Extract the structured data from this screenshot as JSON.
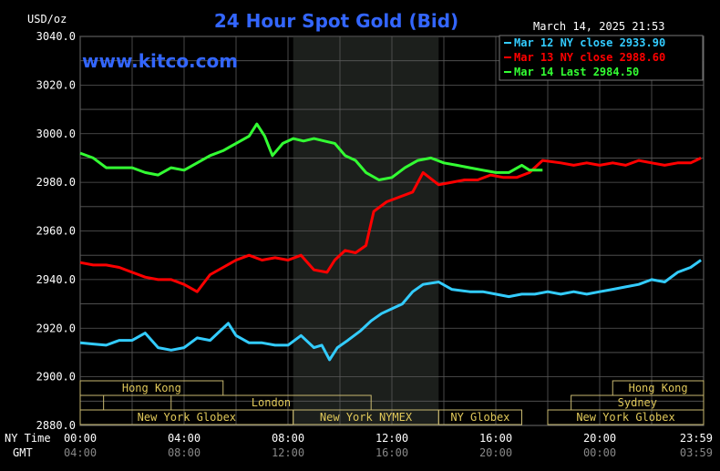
{
  "header": {
    "unit": "USD/oz",
    "title": "24 Hour Spot Gold (Bid)",
    "timestamp": "March 14, 2025 21:53",
    "watermark": "www.kitco.com"
  },
  "legend_items": [
    {
      "label": "Mar 12 NY close 2933.90",
      "color": "#33ccff"
    },
    {
      "label": "Mar 13 NY close 2988.60",
      "color": "#ff0000"
    },
    {
      "label": "Mar 14 Last 2984.50",
      "color": "#33ff33"
    }
  ],
  "axis_labels": {
    "ny_time": "NY Time",
    "gmt": "GMT"
  },
  "y_ticks": [
    "3040.0",
    "3020.0",
    "3000.0",
    "2980.0",
    "2960.0",
    "2940.0",
    "2920.0",
    "2900.0",
    "2880.0"
  ],
  "x_ticks_ny": [
    "00:00",
    "04:00",
    "08:00",
    "12:00",
    "16:00",
    "20:00",
    "23:59"
  ],
  "x_ticks_gmt": [
    "04:00",
    "08:00",
    "12:00",
    "16:00",
    "20:00",
    "00:00",
    "03:59"
  ],
  "sessions": {
    "row1": [
      {
        "label": "Hong Kong",
        "start": 0,
        "end": 5.5
      },
      {
        "label": "Hong Kong",
        "start": 20.5,
        "end": 24
      }
    ],
    "row2": [
      {
        "label": "",
        "start": 0,
        "end": 0.9
      },
      {
        "label": "London",
        "start": 3.5,
        "end": 11.2
      },
      {
        "label": "Sydney",
        "start": 18.9,
        "end": 24
      }
    ],
    "row3": [
      {
        "label": "New York Globex",
        "start": 0,
        "end": 8.2
      },
      {
        "label": "New York NYMEX",
        "start": 8.2,
        "end": 13.8
      },
      {
        "label": "NY Globex",
        "start": 13.8,
        "end": 17.0
      },
      {
        "label": "New York Globex",
        "start": 18.0,
        "end": 24
      }
    ]
  },
  "chart_data": {
    "type": "line",
    "title": "24 Hour Spot Gold (Bid)",
    "ylabel": "USD/oz",
    "xlabel": "NY Time",
    "xlim": [
      0,
      24
    ],
    "ylim": [
      2880,
      3040
    ],
    "shaded_region": [
      8.2,
      13.8
    ],
    "grid": true,
    "legend_position": "top-right",
    "series": [
      {
        "name": "Mar 12 NY close 2933.90",
        "color": "#33ccff",
        "points": [
          [
            0,
            2914
          ],
          [
            0.5,
            2913.5
          ],
          [
            1.0,
            2913
          ],
          [
            1.5,
            2915
          ],
          [
            2.0,
            2915
          ],
          [
            2.5,
            2918
          ],
          [
            3.0,
            2912
          ],
          [
            3.5,
            2911
          ],
          [
            4.0,
            2912
          ],
          [
            4.5,
            2916
          ],
          [
            5.0,
            2915
          ],
          [
            5.3,
            2918
          ],
          [
            5.7,
            2922
          ],
          [
            6.0,
            2917
          ],
          [
            6.5,
            2914
          ],
          [
            7.0,
            2914
          ],
          [
            7.5,
            2913
          ],
          [
            8.0,
            2913
          ],
          [
            8.5,
            2917
          ],
          [
            9.0,
            2912
          ],
          [
            9.3,
            2913
          ],
          [
            9.6,
            2907
          ],
          [
            9.9,
            2912
          ],
          [
            10.3,
            2915
          ],
          [
            10.8,
            2919
          ],
          [
            11.2,
            2923
          ],
          [
            11.6,
            2926
          ],
          [
            12.0,
            2928
          ],
          [
            12.4,
            2930
          ],
          [
            12.8,
            2935
          ],
          [
            13.2,
            2938
          ],
          [
            13.8,
            2939
          ],
          [
            14.3,
            2936
          ],
          [
            15.0,
            2935
          ],
          [
            15.5,
            2935
          ],
          [
            16.0,
            2934
          ],
          [
            16.5,
            2933
          ],
          [
            17.0,
            2934
          ],
          [
            17.5,
            2934
          ],
          [
            18.0,
            2935
          ],
          [
            18.5,
            2934
          ],
          [
            19.0,
            2935
          ],
          [
            19.5,
            2934
          ],
          [
            20.0,
            2935
          ],
          [
            20.5,
            2936
          ],
          [
            21.0,
            2937
          ],
          [
            21.5,
            2938
          ],
          [
            22.0,
            2940
          ],
          [
            22.5,
            2939
          ],
          [
            23.0,
            2943
          ],
          [
            23.5,
            2945
          ],
          [
            23.9,
            2948
          ]
        ]
      },
      {
        "name": "Mar 13 NY close 2988.60",
        "color": "#ff0000",
        "points": [
          [
            0,
            2947
          ],
          [
            0.5,
            2946
          ],
          [
            1.0,
            2946
          ],
          [
            1.5,
            2945
          ],
          [
            2.0,
            2943
          ],
          [
            2.5,
            2941
          ],
          [
            3.0,
            2940
          ],
          [
            3.5,
            2940
          ],
          [
            4.0,
            2938
          ],
          [
            4.5,
            2935
          ],
          [
            5.0,
            2942
          ],
          [
            5.5,
            2945
          ],
          [
            6.0,
            2948
          ],
          [
            6.5,
            2950
          ],
          [
            7.0,
            2948
          ],
          [
            7.5,
            2949
          ],
          [
            8.0,
            2948
          ],
          [
            8.5,
            2950
          ],
          [
            9.0,
            2944
          ],
          [
            9.5,
            2943
          ],
          [
            9.8,
            2948
          ],
          [
            10.2,
            2952
          ],
          [
            10.6,
            2951
          ],
          [
            11.0,
            2954
          ],
          [
            11.3,
            2968
          ],
          [
            11.8,
            2972
          ],
          [
            12.3,
            2974
          ],
          [
            12.8,
            2976
          ],
          [
            13.2,
            2984
          ],
          [
            13.8,
            2979
          ],
          [
            14.3,
            2980
          ],
          [
            14.8,
            2981
          ],
          [
            15.3,
            2981
          ],
          [
            15.8,
            2983
          ],
          [
            16.3,
            2982
          ],
          [
            16.8,
            2982
          ],
          [
            17.3,
            2984
          ],
          [
            17.8,
            2989
          ],
          [
            18.5,
            2988
          ],
          [
            19.0,
            2987
          ],
          [
            19.5,
            2988
          ],
          [
            20.0,
            2987
          ],
          [
            20.5,
            2988
          ],
          [
            21.0,
            2987
          ],
          [
            21.5,
            2989
          ],
          [
            22.0,
            2988
          ],
          [
            22.5,
            2987
          ],
          [
            23.0,
            2988
          ],
          [
            23.5,
            2988
          ],
          [
            23.9,
            2990
          ]
        ]
      },
      {
        "name": "Mar 14 Last 2984.50",
        "color": "#33ff33",
        "points": [
          [
            0,
            2992
          ],
          [
            0.5,
            2990
          ],
          [
            1.0,
            2986
          ],
          [
            1.5,
            2986
          ],
          [
            2.0,
            2986
          ],
          [
            2.5,
            2984
          ],
          [
            3.0,
            2983
          ],
          [
            3.5,
            2986
          ],
          [
            4.0,
            2985
          ],
          [
            4.5,
            2988
          ],
          [
            5.0,
            2991
          ],
          [
            5.5,
            2993
          ],
          [
            6.0,
            2996
          ],
          [
            6.5,
            2999
          ],
          [
            6.8,
            3004
          ],
          [
            7.1,
            2999
          ],
          [
            7.4,
            2991
          ],
          [
            7.8,
            2996
          ],
          [
            8.2,
            2998
          ],
          [
            8.6,
            2997
          ],
          [
            9.0,
            2998
          ],
          [
            9.4,
            2997
          ],
          [
            9.8,
            2996
          ],
          [
            10.2,
            2991
          ],
          [
            10.6,
            2989
          ],
          [
            11.0,
            2984
          ],
          [
            11.5,
            2981
          ],
          [
            12.0,
            2982
          ],
          [
            12.5,
            2986
          ],
          [
            13.0,
            2989
          ],
          [
            13.5,
            2990
          ],
          [
            14.0,
            2988
          ],
          [
            14.5,
            2987
          ],
          [
            15.0,
            2986
          ],
          [
            15.5,
            2985
          ],
          [
            16.0,
            2984
          ],
          [
            16.5,
            2984
          ],
          [
            17.0,
            2987
          ],
          [
            17.3,
            2985
          ],
          [
            17.8,
            2985
          ]
        ]
      }
    ]
  }
}
